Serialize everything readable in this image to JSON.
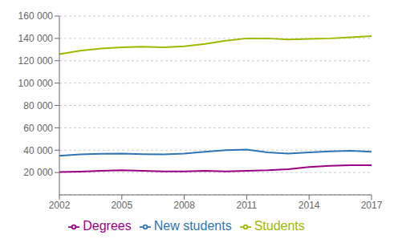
{
  "chart_data": {
    "type": "line",
    "x": [
      2002,
      2003,
      2004,
      2005,
      2006,
      2007,
      2008,
      2009,
      2010,
      2011,
      2012,
      2013,
      2014,
      2015,
      2016,
      2017
    ],
    "series": [
      {
        "name": "New students",
        "color": "#2E75B6",
        "values": [
          35000,
          36200,
          36800,
          37000,
          36500,
          36200,
          37000,
          38500,
          40000,
          40500,
          38000,
          37000,
          38000,
          39000,
          39500,
          38500
        ]
      },
      {
        "name": "Students",
        "color": "#9BBB00",
        "values": [
          126000,
          129000,
          131000,
          132000,
          132500,
          132000,
          133000,
          135000,
          138000,
          140000,
          140000,
          139000,
          139500,
          140000,
          141000,
          142000
        ]
      },
      {
        "name": "Degrees",
        "color": "#9B0082",
        "values": [
          20500,
          20800,
          21500,
          22000,
          21500,
          21000,
          21000,
          21500,
          21000,
          21500,
          22000,
          23000,
          25000,
          26000,
          26500,
          26500
        ]
      }
    ],
    "xlim": [
      2002,
      2017
    ],
    "xticks": [
      2002,
      2005,
      2008,
      2011,
      2014,
      2017
    ],
    "ylim": [
      0,
      160000
    ],
    "yticks": [
      {
        "value": 20000,
        "label": "20 000"
      },
      {
        "value": 40000,
        "label": "40 000"
      },
      {
        "value": 60000,
        "label": "60 000"
      },
      {
        "value": 80000,
        "label": "80 000"
      },
      {
        "value": 100000,
        "label": "100 000"
      },
      {
        "value": 120000,
        "label": "120 000"
      },
      {
        "value": 140000,
        "label": "140 000"
      },
      {
        "value": 160000,
        "label": "160 000"
      }
    ],
    "grid": true,
    "legend": "bottom"
  }
}
